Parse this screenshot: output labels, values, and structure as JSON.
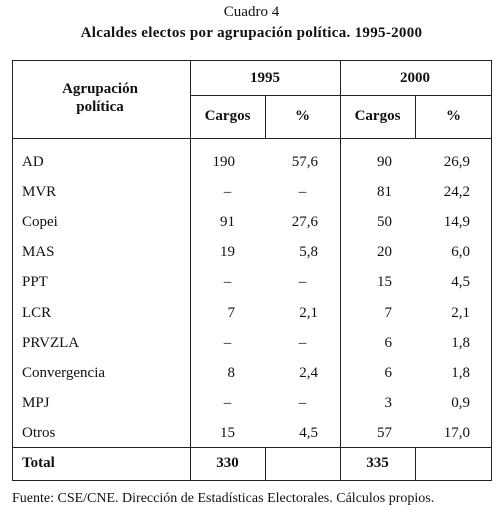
{
  "title": "Cuadro 4",
  "subtitle": "Alcaldes electos por agrupación política. 1995-2000",
  "table": {
    "header": {
      "group": "Agrupación política",
      "years": [
        "1995",
        "2000"
      ],
      "columns": [
        "Cargos",
        "%",
        "Cargos",
        "%"
      ]
    },
    "rows": [
      [
        "AD",
        "190",
        "57,6",
        "90",
        "26,9"
      ],
      [
        "MVR",
        "–",
        "–",
        "81",
        "24,2"
      ],
      [
        "Copei",
        "91",
        "27,6",
        "50",
        "14,9"
      ],
      [
        "MAS",
        "19",
        "5,8",
        "20",
        "6,0"
      ],
      [
        "PPT",
        "–",
        "–",
        "15",
        "4,5"
      ],
      [
        "LCR",
        "7",
        "2,1",
        "7",
        "2,1"
      ],
      [
        "PRVZLA",
        "–",
        "–",
        "6",
        "1,8"
      ],
      [
        "Convergencia",
        "8",
        "2,4",
        "6",
        "1,8"
      ],
      [
        "MPJ",
        "–",
        "–",
        "3",
        "0,9"
      ],
      [
        "Otros",
        "15",
        "4,5",
        "57",
        "17,0"
      ]
    ],
    "total": {
      "label": "Total",
      "values": [
        "330",
        "335"
      ]
    }
  },
  "footnote": "Fuente: CSE/CNE. Dirección de Estadísticas Electorales. Cálculos propios."
}
